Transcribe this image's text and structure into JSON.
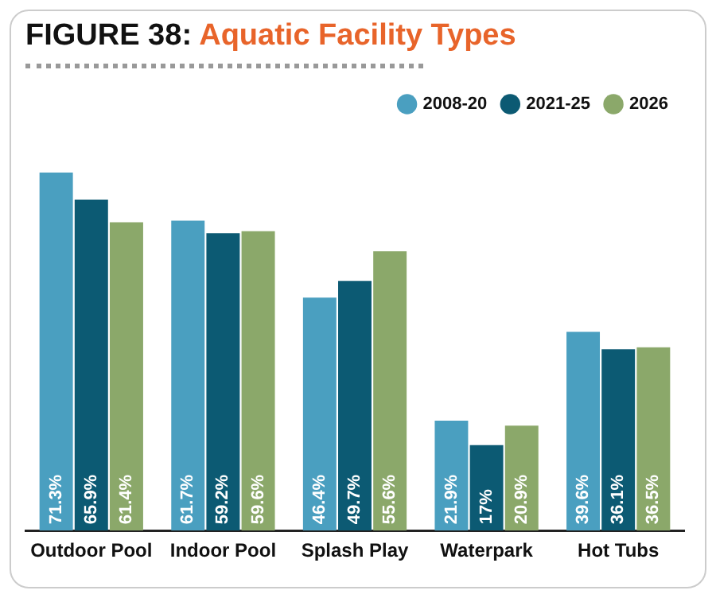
{
  "chart_data": {
    "type": "bar",
    "title": "FIGURE 38: Aquatic Facility Types",
    "categories": [
      "Outdoor Pool",
      "Indoor Pool",
      "Splash Play",
      "Waterpark",
      "Hot Tubs"
    ],
    "series": [
      {
        "name": "2008-20",
        "color": "#4a9fc0",
        "values": [
          71.3,
          61.7,
          46.4,
          21.9,
          39.6
        ],
        "value_labels": [
          "71.3%",
          "61.7%",
          "46.4%",
          "21.9%",
          "39.6%"
        ]
      },
      {
        "name": "2021-25",
        "color": "#0c5a73",
        "values": [
          65.9,
          59.2,
          49.7,
          17,
          36.1
        ],
        "value_labels": [
          "65.9%",
          "59.2%",
          "49.7%",
          "17%",
          "36.1%"
        ]
      },
      {
        "name": "2026",
        "color": "#8ba86a",
        "values": [
          61.4,
          59.6,
          55.6,
          20.9,
          36.5
        ],
        "value_labels": [
          "61.4%",
          "59.6%",
          "55.6%",
          "20.9%",
          "36.5%"
        ]
      }
    ],
    "legend": "top right",
    "grid": false
  }
}
